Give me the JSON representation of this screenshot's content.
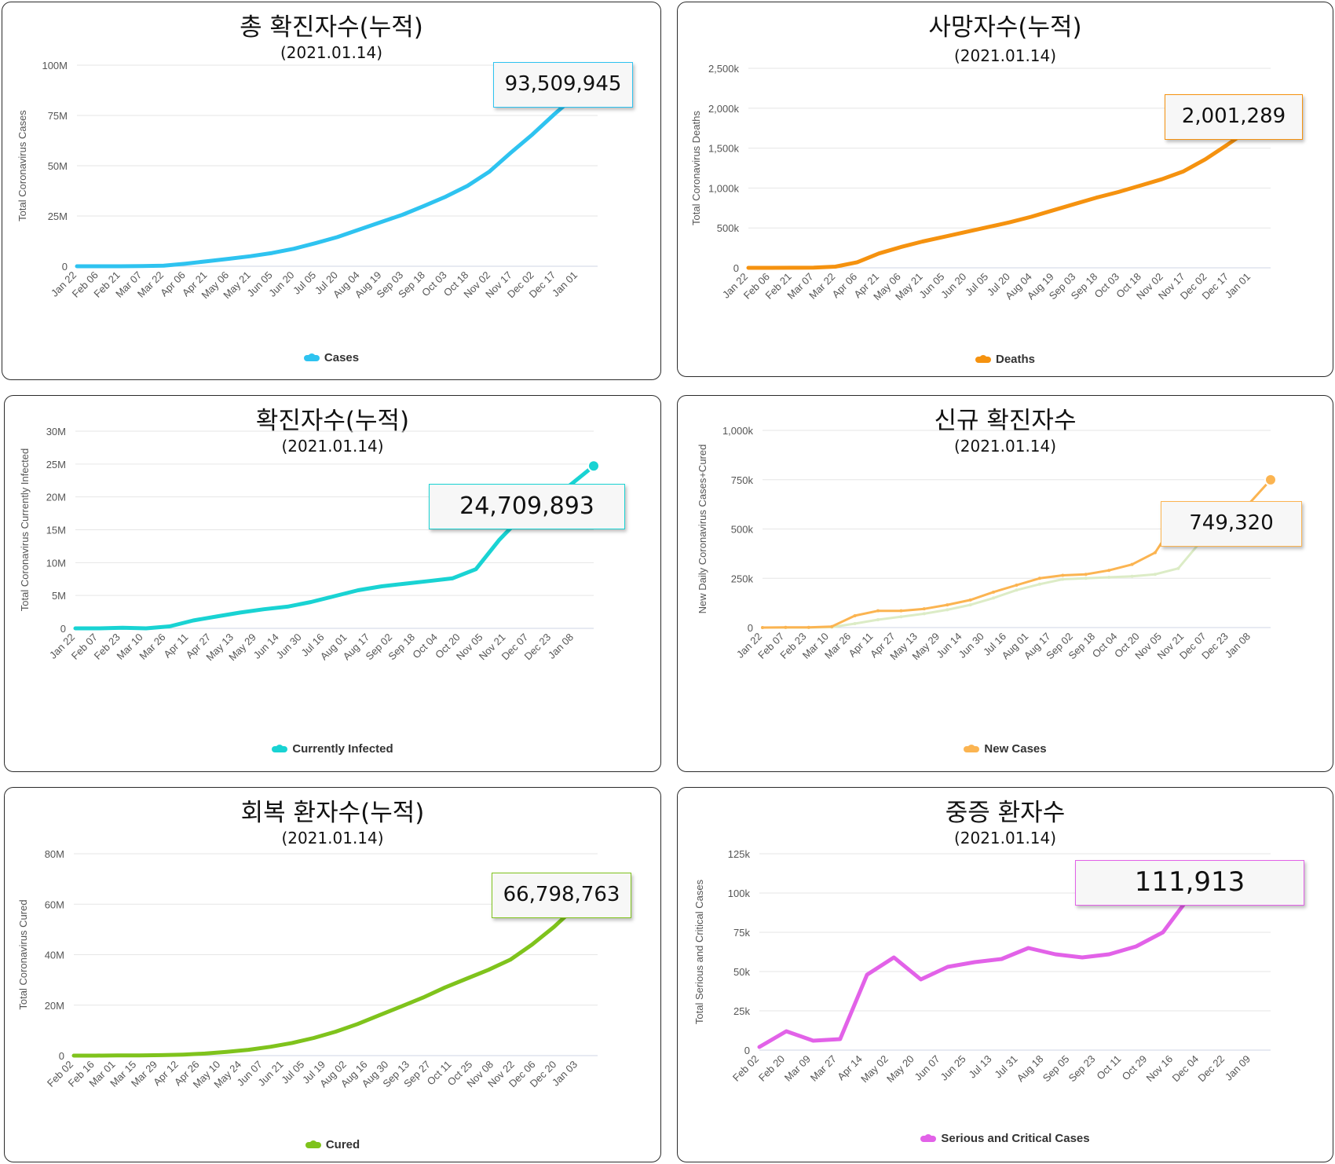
{
  "panels": [
    {
      "title": "총 확진자수(누적)",
      "date": "(2021.01.14)",
      "ylabel": "Total Coronavirus Cases",
      "legend": "Cases",
      "color": "#2ec3f0",
      "tooltip": "93,509,945"
    },
    {
      "title": "사망자수(누적)",
      "date": "(2021.01.14)",
      "ylabel": "Total Coronavirus Deaths",
      "legend": "Deaths",
      "color": "#f5920f",
      "tooltip": "2,001,289"
    },
    {
      "title": "확진자수(누적)",
      "date": "(2021.01.14)",
      "ylabel": "Total Coronavirus Currently Infected",
      "legend": "Currently Infected",
      "color": "#19d3d3",
      "tooltip": "24,709,893"
    },
    {
      "title": "신규 확진자수",
      "date": "(2021.01.14)",
      "ylabel": "New Daily Coronavirus Cases+Cured",
      "legend": "New Cases",
      "color": "#fbb451",
      "tooltip": "749,320"
    },
    {
      "title": "회복 환자수(누적)",
      "date": "(2021.01.14)",
      "ylabel": "Total Coronavirus Cured",
      "legend": "Cured",
      "color": "#7fc31c",
      "tooltip": "66,798,763"
    },
    {
      "title": "중증 환자수",
      "date": "(2021.01.14)",
      "ylabel": "Total Serious and Critical Cases",
      "legend": "Serious and Critical Cases",
      "color": "#e262e8",
      "tooltip": "111,913"
    }
  ],
  "chart_data": [
    {
      "type": "line",
      "title": "총 확진자수(누적)",
      "subtitle": "(2021.01.14)",
      "ylabel": "Total Coronavirus Cases",
      "ylim": [
        0,
        100000000
      ],
      "ytick_labels": [
        "0",
        "25M",
        "50M",
        "75M",
        "100M"
      ],
      "ytick_values": [
        0,
        25000000,
        50000000,
        75000000,
        100000000
      ],
      "xtick_labels": [
        "Jan 22",
        "Feb 06",
        "Feb 21",
        "Mar 07",
        "Mar 22",
        "Apr 06",
        "Apr 21",
        "May 06",
        "May 21",
        "Jun 05",
        "Jun 20",
        "Jul 05",
        "Jul 20",
        "Aug 04",
        "Aug 19",
        "Sep 03",
        "Sep 18",
        "Oct 03",
        "Oct 18",
        "Nov 02",
        "Nov 17",
        "Dec 02",
        "Dec 17",
        "Jan 01"
      ],
      "series": [
        {
          "name": "Cases",
          "values": [
            0,
            0,
            0,
            100000,
            300000,
            1300000,
            2500000,
            3700000,
            5000000,
            6600000,
            8700000,
            11500000,
            14500000,
            18200000,
            21900000,
            25600000,
            30000000,
            34600000,
            40000000,
            47000000,
            56500000,
            65600000,
            75600000,
            85000000,
            93509945
          ]
        }
      ],
      "grid": true,
      "legend": "bottom-center",
      "annotation": "93,509,945"
    },
    {
      "type": "line",
      "title": "사망자수(누적)",
      "subtitle": "(2021.01.14)",
      "ylabel": "Total Coronavirus Deaths",
      "ylim": [
        0,
        2500000
      ],
      "ytick_labels": [
        "0",
        "500k",
        "1,000k",
        "1,500k",
        "2,000k",
        "2,500k"
      ],
      "ytick_values": [
        0,
        500000,
        1000000,
        1500000,
        2000000,
        2500000
      ],
      "xtick_labels": [
        "Jan 22",
        "Feb 06",
        "Feb 21",
        "Mar 07",
        "Mar 22",
        "Apr 06",
        "Apr 21",
        "May 06",
        "May 21",
        "Jun 05",
        "Jun 20",
        "Jul 05",
        "Jul 20",
        "Aug 04",
        "Aug 19",
        "Sep 03",
        "Sep 18",
        "Oct 03",
        "Oct 18",
        "Nov 02",
        "Nov 17",
        "Dec 02",
        "Dec 17",
        "Jan 01"
      ],
      "series": [
        {
          "name": "Deaths",
          "values": [
            0,
            0,
            1000,
            3000,
            15000,
            70000,
            180000,
            260000,
            330000,
            390000,
            450000,
            510000,
            570000,
            640000,
            720000,
            800000,
            880000,
            950000,
            1030000,
            1110000,
            1210000,
            1360000,
            1540000,
            1730000,
            2001289
          ]
        }
      ],
      "grid": true,
      "legend": "bottom-center",
      "annotation": "2,001,289"
    },
    {
      "type": "line",
      "title": "확진자수(누적)",
      "subtitle": "(2021.01.14)",
      "ylabel": "Total Coronavirus Currently Infected",
      "ylim": [
        0,
        30000000
      ],
      "ytick_labels": [
        "0",
        "5M",
        "10M",
        "15M",
        "20M",
        "25M",
        "30M"
      ],
      "ytick_values": [
        0,
        5000000,
        10000000,
        15000000,
        20000000,
        25000000,
        30000000
      ],
      "xtick_labels": [
        "Jan 22",
        "Feb 07",
        "Feb 23",
        "Mar 10",
        "Mar 26",
        "Apr 11",
        "Apr 27",
        "May 13",
        "May 29",
        "Jun 14",
        "Jun 30",
        "Jul 16",
        "Aug 01",
        "Aug 17",
        "Sep 02",
        "Sep 18",
        "Oct 04",
        "Oct 20",
        "Nov 05",
        "Nov 21",
        "Dec 07",
        "Dec 23",
        "Jan 08"
      ],
      "series": [
        {
          "name": "Currently Infected",
          "values": [
            0,
            0,
            100000,
            0,
            300000,
            1200000,
            1800000,
            2400000,
            2900000,
            3300000,
            4000000,
            4900000,
            5800000,
            6400000,
            6800000,
            7200000,
            7600000,
            9000000,
            13500000,
            17200000,
            19500000,
            21800000,
            24709893
          ]
        }
      ],
      "grid": true,
      "legend": "bottom-center",
      "annotation": "24,709,893"
    },
    {
      "type": "line",
      "title": "신규 확진자수",
      "subtitle": "(2021.01.14)",
      "ylabel": "New Daily Coronavirus Cases+Cured",
      "ylim": [
        0,
        1000000
      ],
      "ytick_labels": [
        "0",
        "250k",
        "500k",
        "750k",
        "1,000k"
      ],
      "ytick_values": [
        0,
        250000,
        500000,
        750000,
        1000000
      ],
      "xtick_labels": [
        "Jan 22",
        "Feb 07",
        "Feb 23",
        "Mar 10",
        "Mar 26",
        "Apr 11",
        "Apr 27",
        "May 13",
        "May 29",
        "Jun 14",
        "Jun 30",
        "Jul 16",
        "Aug 01",
        "Aug 17",
        "Sep 02",
        "Sep 18",
        "Oct 04",
        "Oct 20",
        "Nov 05",
        "Nov 21",
        "Dec 07",
        "Dec 23",
        "Jan 08"
      ],
      "series": [
        {
          "name": "New Cases",
          "values": [
            0,
            1000,
            1000,
            5000,
            60000,
            85000,
            85000,
            95000,
            115000,
            140000,
            180000,
            215000,
            250000,
            265000,
            270000,
            290000,
            320000,
            380000,
            560000,
            600000,
            600000,
            620000,
            749320
          ]
        },
        {
          "values": [
            0,
            0,
            0,
            2000,
            20000,
            40000,
            55000,
            70000,
            90000,
            115000,
            150000,
            190000,
            220000,
            245000,
            250000,
            255000,
            260000,
            270000,
            300000,
            440000,
            460000,
            430000,
            470000
          ]
        }
      ],
      "grid": true,
      "legend": "bottom-center",
      "annotation": "749,320"
    },
    {
      "type": "line",
      "title": "회복 환자수(누적)",
      "subtitle": "(2021.01.14)",
      "ylabel": "Total Coronavirus Cured",
      "ylim": [
        0,
        80000000
      ],
      "ytick_labels": [
        "0",
        "20M",
        "40M",
        "60M",
        "80M"
      ],
      "ytick_values": [
        0,
        20000000,
        40000000,
        60000000,
        80000000
      ],
      "xtick_labels": [
        "Feb 02",
        "Feb 16",
        "Mar 01",
        "Mar 15",
        "Mar 29",
        "Apr 12",
        "Apr 26",
        "May 10",
        "May 24",
        "Jun 07",
        "Jun 21",
        "Jul 05",
        "Jul 19",
        "Aug 02",
        "Aug 16",
        "Aug 30",
        "Sep 13",
        "Sep 27",
        "Oct 11",
        "Oct 25",
        "Nov 08",
        "Nov 22",
        "Dec 06",
        "Dec 20",
        "Jan 03"
      ],
      "series": [
        {
          "name": "Cured",
          "values": [
            0,
            0,
            100000,
            100000,
            200000,
            400000,
            800000,
            1500000,
            2300000,
            3500000,
            5000000,
            7000000,
            9500000,
            12500000,
            16000000,
            19500000,
            23000000,
            27000000,
            30500000,
            34000000,
            38000000,
            44000000,
            51000000,
            59000000,
            66798763
          ]
        }
      ],
      "grid": true,
      "legend": "bottom-center",
      "annotation": "66,798,763"
    },
    {
      "type": "line",
      "title": "중증 환자수",
      "subtitle": "(2021.01.14)",
      "ylabel": "Total Serious and Critical Cases",
      "ylim": [
        0,
        125000
      ],
      "ytick_labels": [
        "0",
        "25k",
        "50k",
        "75k",
        "100k",
        "125k"
      ],
      "ytick_values": [
        0,
        25000,
        50000,
        75000,
        100000,
        125000
      ],
      "xtick_labels": [
        "Feb 02",
        "Feb 20",
        "Mar 09",
        "Mar 27",
        "Apr 14",
        "May 02",
        "May 20",
        "Jun 07",
        "Jun 25",
        "Jul 13",
        "Jul 31",
        "Aug 18",
        "Sep 05",
        "Sep 23",
        "Oct 11",
        "Oct 29",
        "Nov 16",
        "Dec 04",
        "Dec 22",
        "Jan 09"
      ],
      "series": [
        {
          "name": "Serious and Critical Cases",
          "values": [
            2000,
            12000,
            6000,
            7000,
            48000,
            59000,
            45000,
            53000,
            56000,
            58000,
            65000,
            61000,
            59000,
            61000,
            66000,
            75000,
            98000,
            106000,
            108000,
            111913
          ]
        }
      ],
      "grid": true,
      "legend": "bottom-center",
      "annotation": "111,913"
    }
  ]
}
